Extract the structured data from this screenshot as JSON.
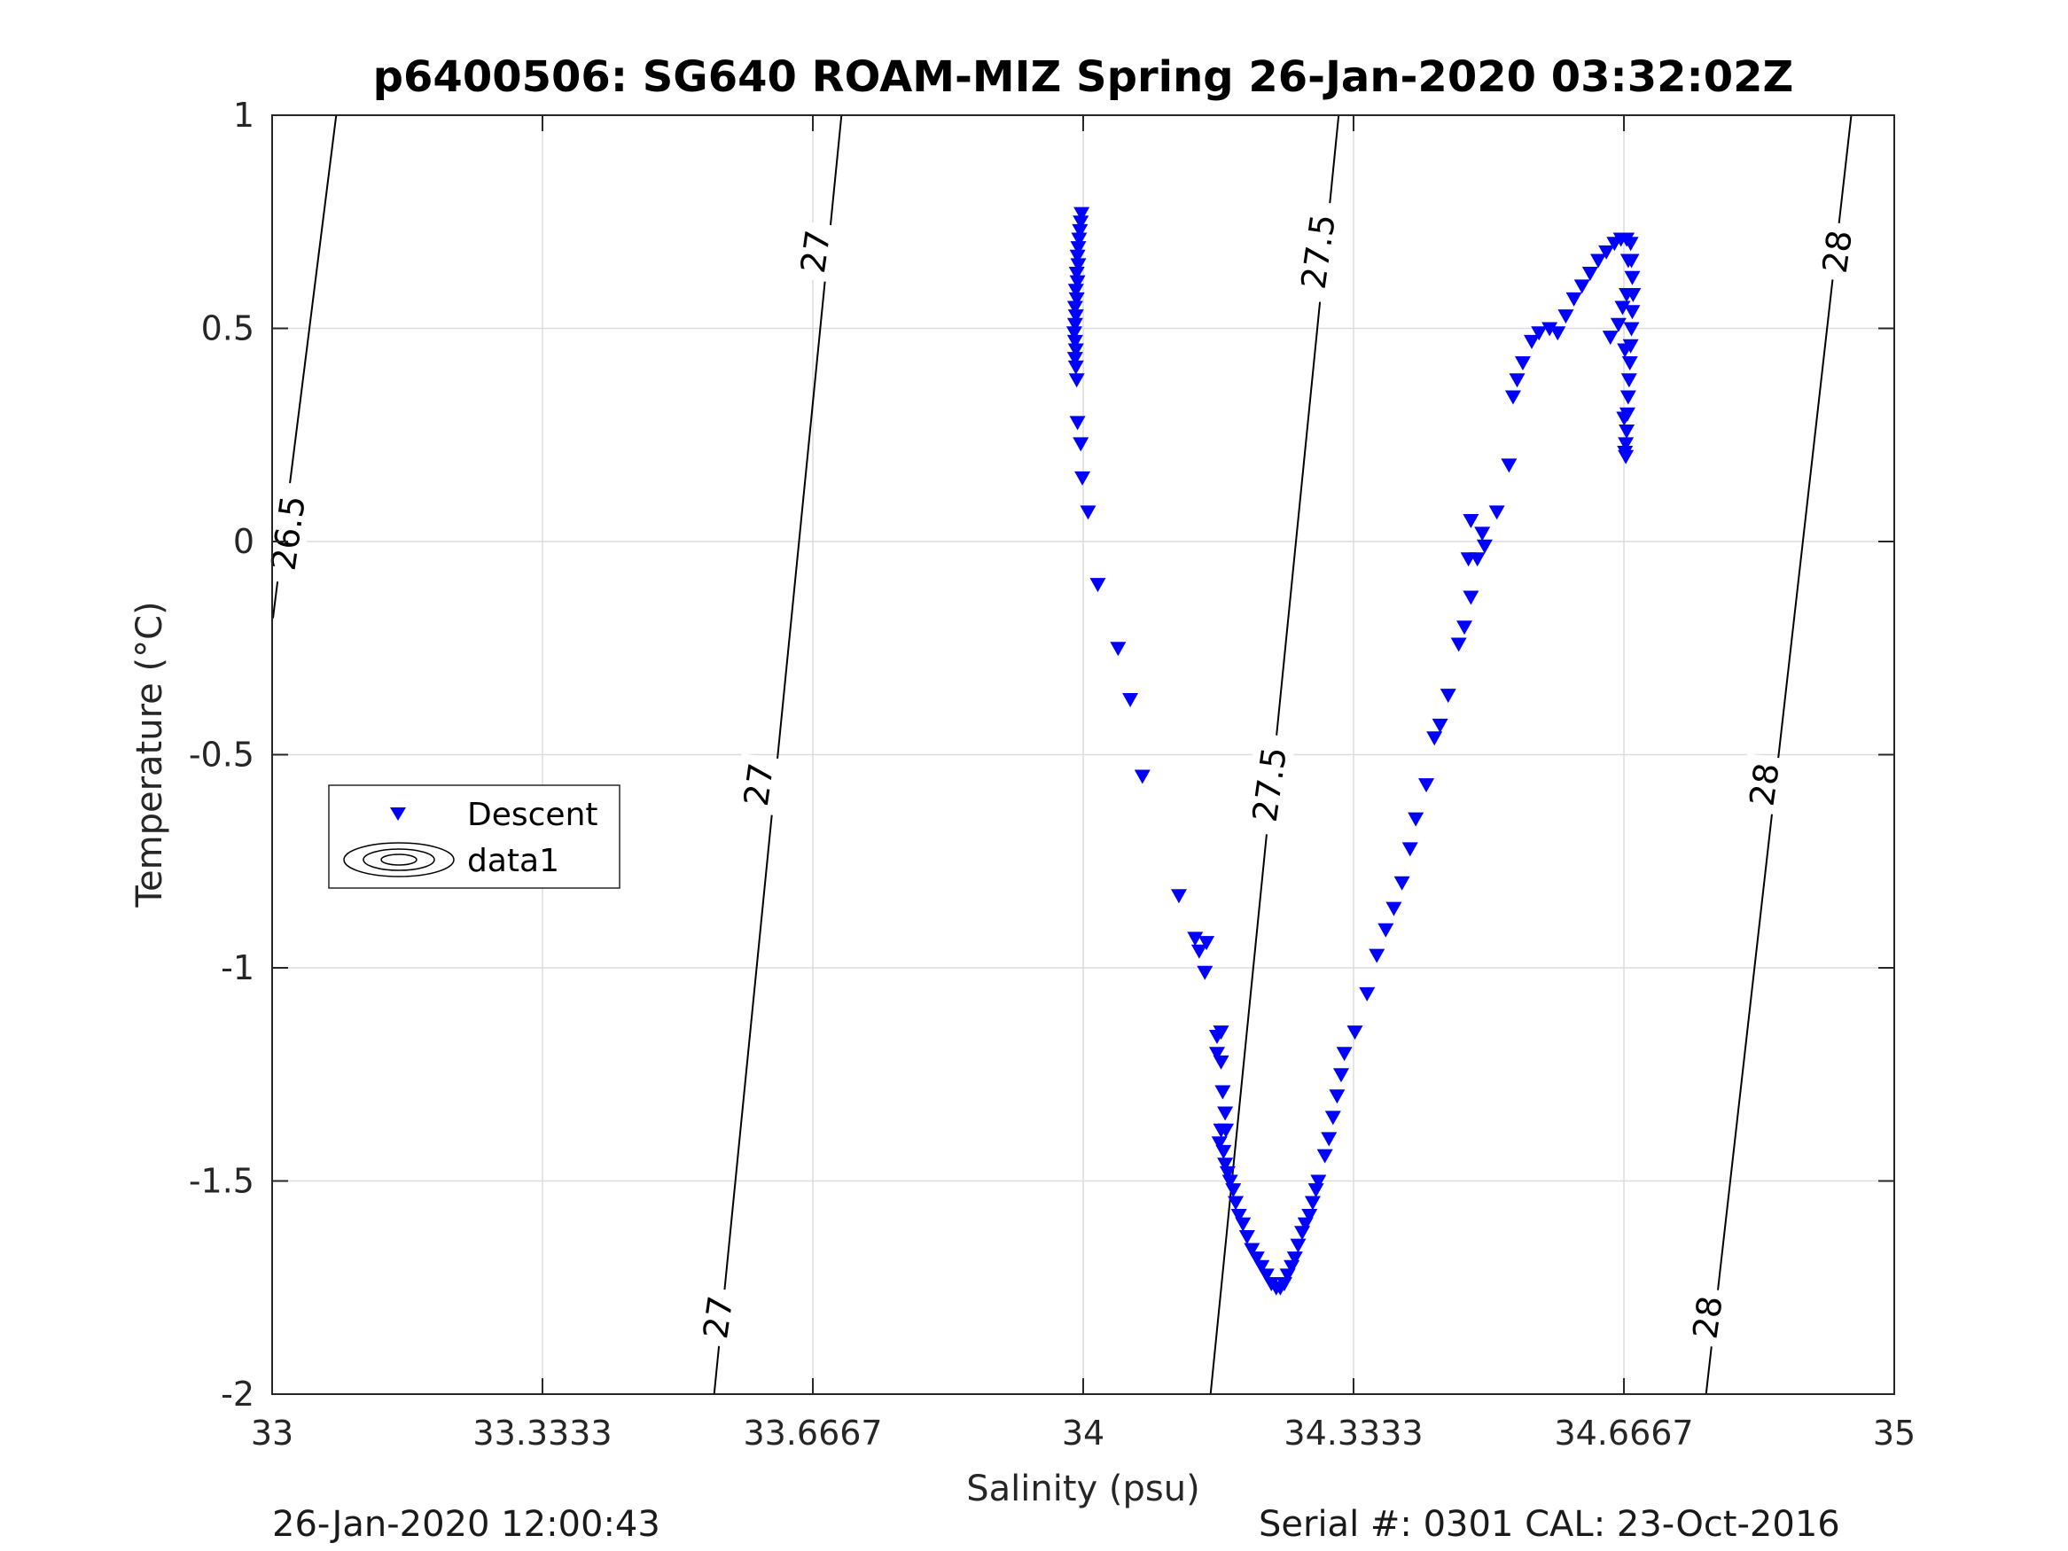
{
  "chart_data": {
    "type": "scatter",
    "title": "p6400506: SG640 ROAM-MIZ Spring 26-Jan-2020 03:32:02Z",
    "xlabel": "Salinity (psu)",
    "ylabel": "Temperature (°C)",
    "xlim": [
      33,
      35
    ],
    "ylim": [
      -2,
      1
    ],
    "x_ticks": [
      33,
      33.3333,
      33.6667,
      34,
      34.3333,
      34.6667,
      35
    ],
    "x_tick_labels": [
      "33",
      "33.3333",
      "33.6667",
      "34",
      "34.3333",
      "34.6667",
      "35"
    ],
    "y_ticks": [
      1,
      0.5,
      0,
      -0.5,
      -1,
      -1.5,
      -2
    ],
    "y_tick_labels": [
      "1",
      "0.5",
      "0",
      "-0.5",
      "-1",
      "-1.5",
      "-2"
    ],
    "grid": true,
    "legend": {
      "placement": "left-middle",
      "entries": [
        "Descent",
        "data1"
      ]
    },
    "colors": {
      "descent": "#0000ff",
      "contour": "#000000",
      "grid": "#dcdcdc"
    },
    "contours": [
      {
        "level": "26.5",
        "points": [
          [
            33.001,
            -0.18
          ],
          [
            33.079,
            1.0
          ]
        ]
      },
      {
        "level": "27",
        "points": [
          [
            33.545,
            -2.0
          ],
          [
            33.702,
            1.0
          ]
        ]
      },
      {
        "level": "27.5",
        "points": [
          [
            34.157,
            -2.0
          ],
          [
            34.315,
            1.0
          ]
        ]
      },
      {
        "level": "28",
        "points": [
          [
            34.768,
            -2.0
          ],
          [
            34.947,
            1.0
          ]
        ]
      }
    ],
    "contour_labels": [
      {
        "text": "26.5",
        "x": 33.02,
        "y": 0.02
      },
      {
        "text": "27",
        "x": 33.67,
        "y": 0.68
      },
      {
        "text": "27",
        "x": 33.6,
        "y": -0.57
      },
      {
        "text": "27",
        "x": 33.55,
        "y": -1.82
      },
      {
        "text": "27.5",
        "x": 34.29,
        "y": 0.68
      },
      {
        "text": "27.5",
        "x": 34.23,
        "y": -0.57
      },
      {
        "text": "28",
        "x": 34.93,
        "y": 0.68
      },
      {
        "text": "28",
        "x": 34.84,
        "y": -0.57
      },
      {
        "text": "28",
        "x": 34.77,
        "y": -1.82
      }
    ],
    "series": [
      {
        "name": "Descent",
        "marker": "triangle-down",
        "points": [
          [
            33.998,
            0.77
          ],
          [
            33.997,
            0.75
          ],
          [
            33.996,
            0.73
          ],
          [
            33.995,
            0.71
          ],
          [
            33.994,
            0.69
          ],
          [
            33.993,
            0.67
          ],
          [
            33.994,
            0.65
          ],
          [
            33.992,
            0.63
          ],
          [
            33.993,
            0.61
          ],
          [
            33.991,
            0.59
          ],
          [
            33.992,
            0.57
          ],
          [
            33.99,
            0.55
          ],
          [
            33.991,
            0.53
          ],
          [
            33.99,
            0.51
          ],
          [
            33.989,
            0.49
          ],
          [
            33.99,
            0.47
          ],
          [
            33.991,
            0.45
          ],
          [
            33.99,
            0.43
          ],
          [
            33.991,
            0.41
          ],
          [
            33.992,
            0.38
          ],
          [
            33.993,
            0.28
          ],
          [
            33.997,
            0.23
          ],
          [
            33.999,
            0.15
          ],
          [
            34.006,
            0.07
          ],
          [
            34.018,
            -0.1
          ],
          [
            34.043,
            -0.25
          ],
          [
            34.058,
            -0.37
          ],
          [
            34.073,
            -0.55
          ],
          [
            34.118,
            -0.83
          ],
          [
            34.138,
            -0.93
          ],
          [
            34.143,
            -0.96
          ],
          [
            34.152,
            -0.94
          ],
          [
            34.15,
            -1.01
          ],
          [
            34.165,
            -1.16
          ],
          [
            34.17,
            -1.15
          ],
          [
            34.165,
            -1.2
          ],
          [
            34.17,
            -1.22
          ],
          [
            34.172,
            -1.29
          ],
          [
            34.175,
            -1.34
          ],
          [
            34.17,
            -1.38
          ],
          [
            34.176,
            -1.38
          ],
          [
            34.168,
            -1.41
          ],
          [
            34.173,
            -1.43
          ],
          [
            34.175,
            -1.46
          ],
          [
            34.178,
            -1.48
          ],
          [
            34.181,
            -1.5
          ],
          [
            34.185,
            -1.52
          ],
          [
            34.188,
            -1.55
          ],
          [
            34.192,
            -1.58
          ],
          [
            34.197,
            -1.6
          ],
          [
            34.202,
            -1.63
          ],
          [
            34.208,
            -1.66
          ],
          [
            34.214,
            -1.68
          ],
          [
            34.22,
            -1.7
          ],
          [
            34.226,
            -1.72
          ],
          [
            34.232,
            -1.74
          ],
          [
            34.238,
            -1.75
          ],
          [
            34.243,
            -1.75
          ],
          [
            34.248,
            -1.74
          ],
          [
            34.252,
            -1.72
          ],
          [
            34.257,
            -1.7
          ],
          [
            34.261,
            -1.68
          ],
          [
            34.265,
            -1.65
          ],
          [
            34.27,
            -1.62
          ],
          [
            34.274,
            -1.6
          ],
          [
            34.279,
            -1.58
          ],
          [
            34.283,
            -1.55
          ],
          [
            34.287,
            -1.52
          ],
          [
            34.29,
            -1.5
          ],
          [
            34.298,
            -1.44
          ],
          [
            34.303,
            -1.4
          ],
          [
            34.308,
            -1.35
          ],
          [
            34.313,
            -1.3
          ],
          [
            34.318,
            -1.25
          ],
          [
            34.322,
            -1.2
          ],
          [
            34.335,
            -1.15
          ],
          [
            34.35,
            -1.06
          ],
          [
            34.362,
            -0.97
          ],
          [
            34.373,
            -0.91
          ],
          [
            34.383,
            -0.86
          ],
          [
            34.393,
            -0.8
          ],
          [
            34.403,
            -0.72
          ],
          [
            34.41,
            -0.65
          ],
          [
            34.423,
            -0.57
          ],
          [
            34.433,
            -0.46
          ],
          [
            34.44,
            -0.43
          ],
          [
            34.45,
            -0.36
          ],
          [
            34.463,
            -0.24
          ],
          [
            34.47,
            -0.2
          ],
          [
            34.478,
            -0.13
          ],
          [
            34.475,
            -0.04
          ],
          [
            34.486,
            -0.04
          ],
          [
            34.495,
            -0.01
          ],
          [
            34.478,
            0.05
          ],
          [
            34.492,
            0.02
          ],
          [
            34.51,
            0.07
          ],
          [
            34.525,
            0.18
          ],
          [
            34.53,
            0.34
          ],
          [
            34.535,
            0.38
          ],
          [
            34.542,
            0.42
          ],
          [
            34.553,
            0.47
          ],
          [
            34.562,
            0.49
          ],
          [
            34.575,
            0.5
          ],
          [
            34.585,
            0.49
          ],
          [
            34.595,
            0.53
          ],
          [
            34.605,
            0.57
          ],
          [
            34.615,
            0.6
          ],
          [
            34.625,
            0.63
          ],
          [
            34.635,
            0.66
          ],
          [
            34.645,
            0.68
          ],
          [
            34.655,
            0.7
          ],
          [
            34.663,
            0.71
          ],
          [
            34.67,
            0.71
          ],
          [
            34.675,
            0.7
          ],
          [
            34.676,
            0.66
          ],
          [
            34.677,
            0.62
          ],
          [
            34.678,
            0.58
          ],
          [
            34.677,
            0.54
          ],
          [
            34.676,
            0.5
          ],
          [
            34.675,
            0.46
          ],
          [
            34.674,
            0.42
          ],
          [
            34.673,
            0.38
          ],
          [
            34.672,
            0.34
          ],
          [
            34.671,
            0.3
          ],
          [
            34.67,
            0.26
          ],
          [
            34.669,
            0.23
          ],
          [
            34.668,
            0.21
          ],
          [
            34.669,
            0.2
          ],
          [
            34.667,
            0.29
          ],
          [
            34.668,
            0.45
          ],
          [
            34.67,
            0.58
          ],
          [
            34.672,
            0.66
          ],
          [
            34.665,
            0.55
          ],
          [
            34.66,
            0.51
          ],
          [
            34.65,
            0.48
          ]
        ]
      }
    ]
  },
  "footer": {
    "date": "26-Jan-2020 12:00:43",
    "serial": "Serial #: 0301  CAL: 23-Oct-2016"
  }
}
